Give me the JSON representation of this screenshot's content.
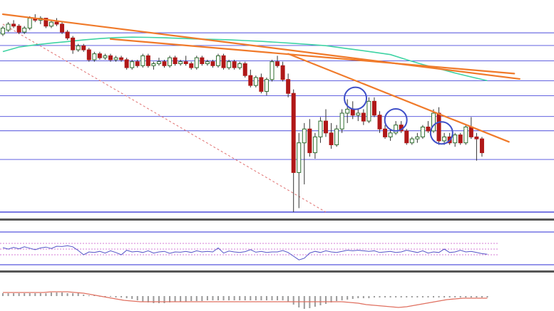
{
  "chart_data": [
    {
      "panel": "price",
      "type": "candlestick",
      "title": "",
      "xlabel": "",
      "ylabel": "",
      "ylim": [
        0,
        100
      ],
      "grid": "horizontal",
      "colors": {
        "up": "#2f6e2f",
        "down": "#b01818",
        "wick": "#333333",
        "hline": "#2b2bd6",
        "trendline": "#f07a2a",
        "ma": "#3fd3a4",
        "circle": "#3f4fc8",
        "dashed": "#e07070"
      },
      "candles": [
        [
          90,
          94,
          89,
          93
        ],
        [
          92,
          96,
          91,
          95
        ],
        [
          95,
          97,
          93,
          94
        ],
        [
          94,
          95,
          90,
          91
        ],
        [
          91,
          94,
          90,
          93
        ],
        [
          93,
          99,
          92,
          98
        ],
        [
          98,
          100,
          96,
          97
        ],
        [
          97,
          99,
          95,
          98
        ],
        [
          98,
          98,
          93,
          94
        ],
        [
          94,
          97,
          93,
          96
        ],
        [
          96,
          98,
          94,
          95
        ],
        [
          95,
          96,
          90,
          91
        ],
        [
          91,
          92,
          87,
          88
        ],
        [
          88,
          89,
          80,
          82
        ],
        [
          82,
          85,
          81,
          84
        ],
        [
          84,
          85,
          81,
          82
        ],
        [
          82,
          83,
          76,
          77
        ],
        [
          77,
          81,
          76,
          80
        ],
        [
          80,
          81,
          77,
          78
        ],
        [
          78,
          80,
          77,
          79
        ],
        [
          79,
          80,
          76,
          77
        ],
        [
          77,
          79,
          76,
          78
        ],
        [
          78,
          79,
          76,
          77
        ],
        [
          77,
          78,
          72,
          73
        ],
        [
          73,
          77,
          72,
          76
        ],
        [
          76,
          77,
          73,
          74
        ],
        [
          74,
          80,
          73,
          79
        ],
        [
          79,
          80,
          73,
          74
        ],
        [
          74,
          76,
          72,
          75
        ],
        [
          75,
          78,
          74,
          76
        ],
        [
          76,
          77,
          73,
          74
        ],
        [
          74,
          79,
          73,
          78
        ],
        [
          78,
          79,
          74,
          75
        ],
        [
          75,
          77,
          74,
          76
        ],
        [
          76,
          79,
          74,
          75
        ],
        [
          75,
          76,
          72,
          73
        ],
        [
          73,
          79,
          72,
          78
        ],
        [
          78,
          79,
          74,
          75
        ],
        [
          75,
          77,
          74,
          76
        ],
        [
          76,
          77,
          73,
          74
        ],
        [
          74,
          80,
          73,
          79
        ],
        [
          79,
          80,
          72,
          73
        ],
        [
          73,
          77,
          72,
          76
        ],
        [
          76,
          77,
          72,
          73
        ],
        [
          73,
          76,
          72,
          75
        ],
        [
          75,
          76,
          68,
          69
        ],
        [
          69,
          72,
          63,
          64
        ],
        [
          64,
          69,
          63,
          68
        ],
        [
          68,
          70,
          60,
          61
        ],
        [
          61,
          68,
          59,
          67
        ],
        [
          67,
          77,
          66,
          76
        ],
        [
          76,
          79,
          73,
          74
        ],
        [
          74,
          76,
          66,
          67
        ],
        [
          67,
          70,
          58,
          60
        ],
        [
          60,
          62,
          0,
          20
        ],
        [
          20,
          40,
          2,
          35
        ],
        [
          35,
          45,
          14,
          42
        ],
        [
          42,
          47,
          28,
          30
        ],
        [
          30,
          40,
          27,
          38
        ],
        [
          38,
          48,
          35,
          46
        ],
        [
          46,
          52,
          38,
          40
        ],
        [
          40,
          45,
          32,
          34
        ],
        [
          34,
          44,
          33,
          42
        ],
        [
          42,
          52,
          40,
          50
        ],
        [
          50,
          57,
          45,
          52
        ],
        [
          52,
          56,
          47,
          49
        ],
        [
          49,
          52,
          46,
          50
        ],
        [
          50,
          52,
          44,
          46
        ],
        [
          46,
          58,
          45,
          56
        ],
        [
          56,
          58,
          48,
          49
        ],
        [
          49,
          51,
          40,
          42
        ],
        [
          42,
          44,
          37,
          38
        ],
        [
          38,
          42,
          36,
          40
        ],
        [
          40,
          46,
          39,
          44
        ],
        [
          44,
          46,
          40,
          41
        ],
        [
          41,
          42,
          34,
          35
        ],
        [
          35,
          38,
          34,
          37
        ],
        [
          37,
          40,
          35,
          38
        ],
        [
          38,
          44,
          37,
          43
        ],
        [
          43,
          46,
          40,
          41
        ],
        [
          41,
          52,
          40,
          50
        ],
        [
          50,
          53,
          34,
          36
        ],
        [
          36,
          40,
          34,
          38
        ],
        [
          38,
          40,
          34,
          35
        ],
        [
          35,
          40,
          33,
          39
        ],
        [
          39,
          40,
          34,
          35
        ],
        [
          35,
          44,
          34,
          43
        ],
        [
          43,
          48,
          37,
          38
        ],
        [
          38,
          40,
          26,
          37
        ],
        [
          37,
          38,
          28,
          30
        ]
      ],
      "moving_average": [
        81.1,
        83.4,
        84.5,
        85.4,
        86.2,
        87.0,
        87.7,
        88.2,
        88.4,
        88.3,
        88.1,
        87.8,
        87.5,
        87.3,
        87.1,
        86.7,
        86.3,
        85.8,
        85.3,
        84.7,
        84.1,
        83.0,
        81.9,
        80.8,
        79.6,
        77.0,
        74.6,
        72.5,
        70.3,
        68.3,
        66.4
      ],
      "hlines": [
        90.6,
        84.2,
        76.4,
        66.4,
        58.8,
        48.3,
        41.1,
        26.6,
        0
      ],
      "trendlines": [
        [
          [
            0,
            100
          ],
          [
            96,
            67.3
          ]
        ],
        [
          [
            20,
            87.5
          ],
          [
            95,
            70
          ]
        ],
        [
          [
            53,
            80
          ],
          [
            94,
            35.5
          ]
        ]
      ],
      "dashed_line": [
        [
          0,
          95
        ],
        [
          60,
          0
        ]
      ],
      "circles": [
        [
          65.5,
          57.5
        ],
        [
          73,
          46.6
        ],
        [
          81.5,
          40
        ]
      ]
    },
    {
      "panel": "indicator",
      "type": "line",
      "ylim": [
        0,
        100
      ],
      "grid": "none",
      "colors": {
        "line": "#5555c8",
        "band": "#c850c8",
        "frame": "#2b2bd6"
      },
      "values": [
        55,
        50,
        56,
        51,
        58,
        53,
        48,
        54,
        57,
        52,
        60,
        59,
        62,
        58,
        45,
        30,
        40,
        38,
        42,
        36,
        44,
        38,
        30,
        46,
        40,
        42,
        38,
        44,
        36,
        40,
        42,
        35,
        40,
        39,
        42,
        38,
        44,
        40,
        42,
        40,
        54,
        36,
        43,
        40,
        38,
        41,
        48,
        39,
        42,
        38,
        40,
        40,
        45,
        38,
        25,
        12,
        18,
        36,
        42,
        38,
        44,
        40,
        38,
        42,
        46,
        44,
        46,
        44,
        42,
        44,
        38,
        40,
        42,
        38,
        40,
        46,
        42,
        38,
        44,
        36,
        40,
        38,
        50,
        38,
        40,
        46,
        40,
        42,
        38,
        34,
        32
      ],
      "bands": [
        70,
        50,
        30
      ]
    },
    {
      "panel": "histogram",
      "type": "bar",
      "ylim": [
        -18,
        12
      ],
      "grid": "none",
      "colors": {
        "bar": "#9a9a9a",
        "signal": "#e07060"
      },
      "values": [
        4,
        4,
        4,
        4,
        4,
        4,
        4,
        4,
        4,
        5,
        5,
        5,
        4,
        4,
        4,
        2,
        1,
        1,
        0,
        -1,
        -1,
        -2,
        -2,
        -3,
        -4,
        -6,
        -8,
        -9,
        -10,
        -10,
        -10,
        -9,
        -8,
        -8,
        -8,
        -7,
        -7,
        -7,
        -6,
        -6,
        -6,
        -6,
        -6,
        -6,
        -6,
        -6,
        -6,
        -6,
        -6,
        -6,
        -6,
        -6,
        -6,
        -8,
        -12,
        -16,
        -18,
        -17,
        -15,
        -13,
        -11,
        -9,
        -7,
        -6,
        -5,
        -4,
        -3,
        -3,
        -3,
        -2,
        -2,
        -2,
        -2,
        -2,
        -2,
        -2,
        -2,
        -2,
        -2,
        -2,
        -2,
        -2,
        -2,
        -2,
        -2,
        -2,
        -2,
        -2,
        -2,
        -2,
        -2
      ],
      "signal": [
        5,
        5,
        5,
        5,
        5,
        5,
        6,
        6,
        6,
        5,
        4,
        2,
        0,
        -2,
        -4,
        -6,
        -7,
        -8,
        -8,
        -8,
        -8,
        -8,
        -8,
        -8,
        -8,
        -8,
        -8,
        -8,
        -8,
        -8,
        -8,
        -8,
        -8,
        -8,
        -8,
        -8,
        -8,
        -8,
        -8,
        -8,
        -8,
        -8,
        -8,
        -9,
        -10,
        -12,
        -13,
        -14,
        -15,
        -16,
        -15,
        -13,
        -11,
        -9,
        -7,
        -5,
        -4,
        -3,
        -3,
        -3,
        -3
      ]
    }
  ]
}
